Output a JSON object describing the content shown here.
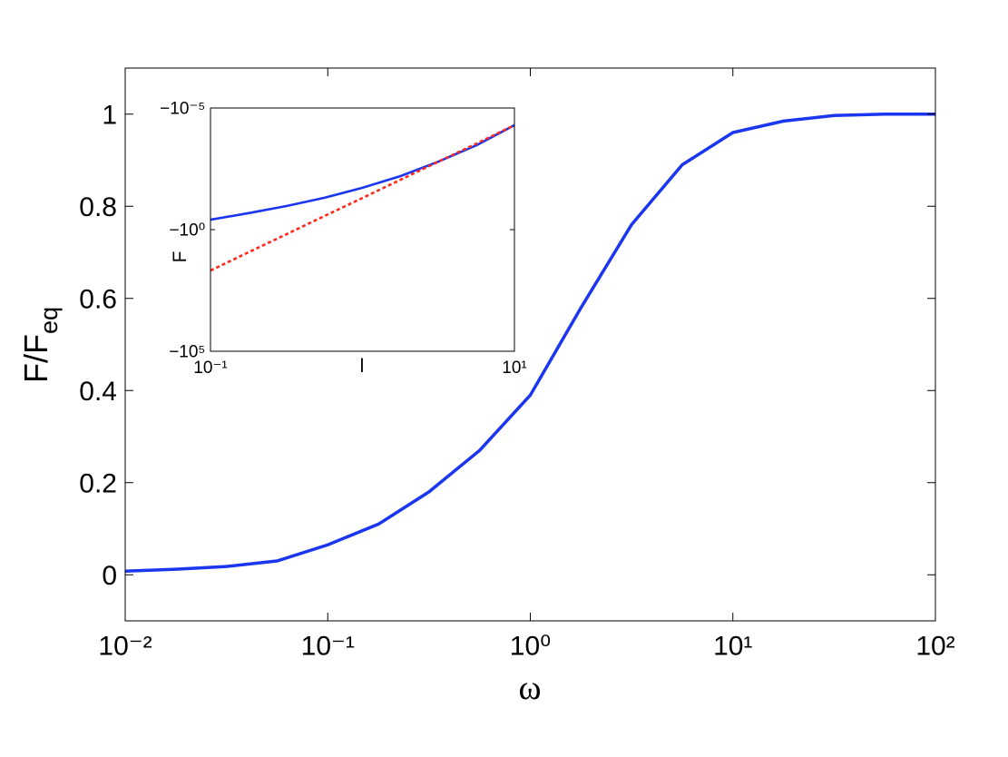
{
  "chart_data": [
    {
      "type": "line",
      "x_label": "ω",
      "y_label": {
        "text": "F/F",
        "subscript": "eq"
      },
      "xscale": "log",
      "xlim": [
        0.01,
        100
      ],
      "xticks": [
        {
          "value": 0.01,
          "label": "10⁻²"
        },
        {
          "value": 0.1,
          "label": "10⁻¹"
        },
        {
          "value": 1,
          "label": "10⁰"
        },
        {
          "value": 10,
          "label": "10¹"
        },
        {
          "value": 100,
          "label": "10²"
        }
      ],
      "ylim": [
        -0.1,
        1.1
      ],
      "yticks": [
        0,
        0.2,
        0.4,
        0.6,
        0.8,
        1
      ],
      "x": [
        0.01,
        0.0178,
        0.0316,
        0.0562,
        0.1,
        0.178,
        0.316,
        0.562,
        1,
        1.78,
        3.16,
        5.62,
        10,
        17.8,
        31.6,
        56.2,
        100
      ],
      "series": [
        {
          "color": "#1a36f0",
          "style": "solid",
          "values": [
            0.008,
            0.012,
            0.018,
            0.03,
            0.065,
            0.11,
            0.18,
            0.27,
            0.39,
            0.58,
            0.76,
            0.89,
            0.96,
            0.985,
            0.997,
            1.0,
            1.0
          ]
        }
      ]
    },
    {
      "type": "line",
      "x_label": "l",
      "y_label": {
        "text": "F"
      },
      "xscale": "log",
      "xlim": [
        0.1,
        10
      ],
      "xticks": [
        {
          "value": 0.1,
          "label": "10⁻¹"
        },
        {
          "value": 10,
          "label": "10¹"
        }
      ],
      "yscale": "log",
      "ylim": [
        -100000,
        -1e-05
      ],
      "yticks": [
        {
          "value": -1e-05,
          "label": "−10⁻⁵"
        },
        {
          "value": -1,
          "label": "−10⁰"
        },
        {
          "value": -100000,
          "label": "−10⁵"
        }
      ],
      "x": [
        0.1,
        0.178,
        0.316,
        0.562,
        1,
        1.78,
        3.16,
        5.62,
        10
      ],
      "series": [
        {
          "color": "#1a36f0",
          "style": "solid",
          "values": [
            -0.39,
            -0.21,
            -0.107,
            -0.049,
            -0.019,
            -0.0063,
            -0.0016,
            -0.00034,
            -5.1e-05
          ]
        },
        {
          "color": "#ff2a1a",
          "style": "dashed",
          "values": [
            -48,
            -8.5,
            -1.55,
            -0.275,
            -0.05,
            -0.0089,
            -0.0016,
            -0.00029,
            -5.1e-05
          ]
        }
      ]
    }
  ]
}
